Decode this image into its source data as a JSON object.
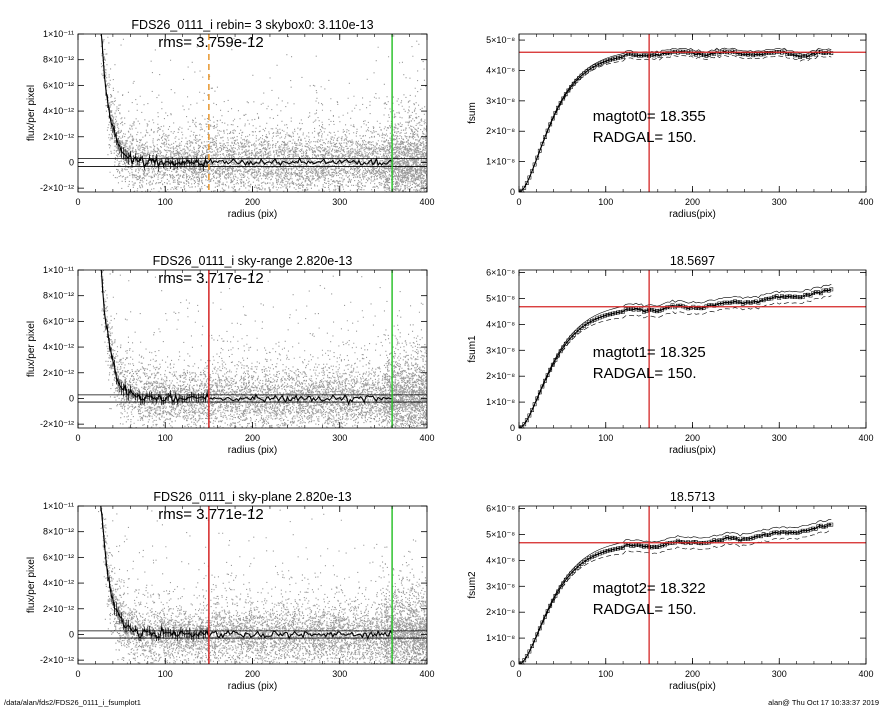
{
  "figure_footer": {
    "left": "/data/alan/fds2/FDS26_0111_i_fsumplot1",
    "right": "alan@  Thu Oct 17 10:33:37 2019"
  },
  "colors": {
    "scatter": "#9a9a9a",
    "profile": "#000000",
    "red_marker": "#d42424",
    "green_marker": "#2ec22e",
    "orange_marker": "#e8962e"
  },
  "chart_data": [
    {
      "id": "profile-rebin",
      "type": "scatter",
      "title": "FDS26_0111_i rebin= 3    skybox0:  3.110e-13",
      "annotation": "rms= 3.759e-12",
      "xlabel": "radius (pix)",
      "ylabel": "flux/per pixel",
      "xlim": [
        0,
        400
      ],
      "ylim": [
        -2.3e-12,
        1e-11
      ],
      "xticks": [
        {
          "v": 0,
          "t": "0"
        },
        {
          "v": 100,
          "t": "100"
        },
        {
          "v": 200,
          "t": "200"
        },
        {
          "v": 300,
          "t": "300"
        },
        {
          "v": 400,
          "t": "400"
        }
      ],
      "yticks": [
        {
          "v": -2e-12,
          "t": "-2×10⁻¹²"
        },
        {
          "v": 0,
          "t": "0"
        },
        {
          "v": 2e-12,
          "t": "2×10⁻¹²"
        },
        {
          "v": 4e-12,
          "t": "4×10⁻¹²"
        },
        {
          "v": 6e-12,
          "t": "6×10⁻¹²"
        },
        {
          "v": 8e-12,
          "t": "8×10⁻¹²"
        },
        {
          "v": 1e-11,
          "t": "1×10⁻¹¹"
        }
      ],
      "sky_band": [
        -3.1e-13,
        3.1e-13
      ],
      "markers": [
        {
          "x": 150,
          "color": "orange",
          "style": "dashed"
        },
        {
          "x": 360,
          "color": "green",
          "style": "solid"
        }
      ]
    },
    {
      "id": "growth-rebin",
      "type": "line",
      "title": "",
      "xlabel": "radius(pix)",
      "ylabel": "fsum",
      "xlim": [
        0,
        400
      ],
      "ylim": [
        0,
        5.2e-08
      ],
      "xticks": [
        {
          "v": 0,
          "t": "0"
        },
        {
          "v": 100,
          "t": "100"
        },
        {
          "v": 200,
          "t": "200"
        },
        {
          "v": 300,
          "t": "300"
        },
        {
          "v": 400,
          "t": "400"
        }
      ],
      "yticks": [
        {
          "v": 0,
          "t": "0"
        },
        {
          "v": 1e-08,
          "t": "1×10⁻⁸"
        },
        {
          "v": 2e-08,
          "t": "2×10⁻⁸"
        },
        {
          "v": 3e-08,
          "t": "3×10⁻⁸"
        },
        {
          "v": 4e-08,
          "t": "4×10⁻⁸"
        },
        {
          "v": 5e-08,
          "t": "5×10⁻⁸"
        }
      ],
      "mag_label": "magtot0=  18.355",
      "rad_label": "RADGAL=    150.",
      "hline": 4.6e-08,
      "vline": 150,
      "curve": {
        "total": 4.57e-08,
        "tail": 0.0,
        "band": 1.1e-09,
        "end_dip": 5e-10
      }
    },
    {
      "id": "profile-skyrange",
      "type": "scatter",
      "title": "FDS26_0111_i sky-range  2.820e-13",
      "annotation": "rms= 3.717e-12",
      "xlabel": "radius (pix)",
      "ylabel": "flux/per pixel",
      "xlim": [
        0,
        400
      ],
      "ylim": [
        -2.3e-12,
        1e-11
      ],
      "xticks": [
        {
          "v": 0,
          "t": "0"
        },
        {
          "v": 100,
          "t": "100"
        },
        {
          "v": 200,
          "t": "200"
        },
        {
          "v": 300,
          "t": "300"
        },
        {
          "v": 400,
          "t": "400"
        }
      ],
      "yticks": [
        {
          "v": -2e-12,
          "t": "-2×10⁻¹²"
        },
        {
          "v": 0,
          "t": "0"
        },
        {
          "v": 2e-12,
          "t": "2×10⁻¹²"
        },
        {
          "v": 4e-12,
          "t": "4×10⁻¹²"
        },
        {
          "v": 6e-12,
          "t": "6×10⁻¹²"
        },
        {
          "v": 8e-12,
          "t": "8×10⁻¹²"
        },
        {
          "v": 1e-11,
          "t": "1×10⁻¹¹"
        }
      ],
      "sky_band": [
        -2.8e-13,
        2.8e-13
      ],
      "markers": [
        {
          "x": 150,
          "color": "red",
          "style": "solid"
        },
        {
          "x": 360,
          "color": "green",
          "style": "solid"
        }
      ]
    },
    {
      "id": "growth-skyrange",
      "type": "line",
      "title": "18.5697",
      "xlabel": "radius(pix)",
      "ylabel": "fsum1",
      "xlim": [
        0,
        400
      ],
      "ylim": [
        0,
        6.1e-08
      ],
      "xticks": [
        {
          "v": 0,
          "t": "0"
        },
        {
          "v": 100,
          "t": "100"
        },
        {
          "v": 200,
          "t": "200"
        },
        {
          "v": 300,
          "t": "300"
        },
        {
          "v": 400,
          "t": "400"
        }
      ],
      "yticks": [
        {
          "v": 0,
          "t": "0"
        },
        {
          "v": 1e-08,
          "t": "1×10⁻⁸"
        },
        {
          "v": 2e-08,
          "t": "2×10⁻⁸"
        },
        {
          "v": 3e-08,
          "t": "3×10⁻⁸"
        },
        {
          "v": 4e-08,
          "t": "4×10⁻⁸"
        },
        {
          "v": 5e-08,
          "t": "5×10⁻⁸"
        },
        {
          "v": 6e-08,
          "t": "6×10⁻⁸"
        }
      ],
      "mag_label": "magtot1=  18.325",
      "rad_label": "RADGAL=    150.",
      "hline": 4.68e-08,
      "vline": 150,
      "curve": {
        "total": 4.62e-08,
        "tail": 6.8e-09,
        "band": 2e-09,
        "end_dip": 0.0
      }
    },
    {
      "id": "profile-skyplane",
      "type": "scatter",
      "title": "FDS26_0111_i sky-plane  2.820e-13",
      "annotation": "rms= 3.771e-12",
      "xlabel": "radius (pix)",
      "ylabel": "flux/per pixel",
      "xlim": [
        0,
        400
      ],
      "ylim": [
        -2.3e-12,
        1e-11
      ],
      "xticks": [
        {
          "v": 0,
          "t": "0"
        },
        {
          "v": 100,
          "t": "100"
        },
        {
          "v": 200,
          "t": "200"
        },
        {
          "v": 300,
          "t": "300"
        },
        {
          "v": 400,
          "t": "400"
        }
      ],
      "yticks": [
        {
          "v": -2e-12,
          "t": "-2×10⁻¹²"
        },
        {
          "v": 0,
          "t": "0"
        },
        {
          "v": 2e-12,
          "t": "2×10⁻¹²"
        },
        {
          "v": 4e-12,
          "t": "4×10⁻¹²"
        },
        {
          "v": 6e-12,
          "t": "6×10⁻¹²"
        },
        {
          "v": 8e-12,
          "t": "8×10⁻¹²"
        },
        {
          "v": 1e-11,
          "t": "1×10⁻¹¹"
        }
      ],
      "sky_band": [
        -2.8e-13,
        2.8e-13
      ],
      "markers": [
        {
          "x": 150,
          "color": "red",
          "style": "solid"
        },
        {
          "x": 360,
          "color": "green",
          "style": "solid"
        }
      ]
    },
    {
      "id": "growth-skyplane",
      "type": "line",
      "title": "18.5713",
      "xlabel": "radius(pix)",
      "ylabel": "fsum2",
      "xlim": [
        0,
        400
      ],
      "ylim": [
        0,
        6.1e-08
      ],
      "xticks": [
        {
          "v": 0,
          "t": "0"
        },
        {
          "v": 100,
          "t": "100"
        },
        {
          "v": 200,
          "t": "200"
        },
        {
          "v": 300,
          "t": "300"
        },
        {
          "v": 400,
          "t": "400"
        }
      ],
      "yticks": [
        {
          "v": 0,
          "t": "0"
        },
        {
          "v": 1e-08,
          "t": "1×10⁻⁸"
        },
        {
          "v": 2e-08,
          "t": "2×10⁻⁸"
        },
        {
          "v": 3e-08,
          "t": "3×10⁻⁸"
        },
        {
          "v": 4e-08,
          "t": "4×10⁻⁸"
        },
        {
          "v": 5e-08,
          "t": "5×10⁻⁸"
        },
        {
          "v": 6e-08,
          "t": "6×10⁻⁸"
        }
      ],
      "mag_label": "magtot2=  18.322",
      "rad_label": "RADGAL=    150.",
      "hline": 4.68e-08,
      "vline": 150,
      "curve": {
        "total": 4.62e-08,
        "tail": 7e-09,
        "band": 2e-09,
        "end_dip": 0.0
      }
    }
  ]
}
